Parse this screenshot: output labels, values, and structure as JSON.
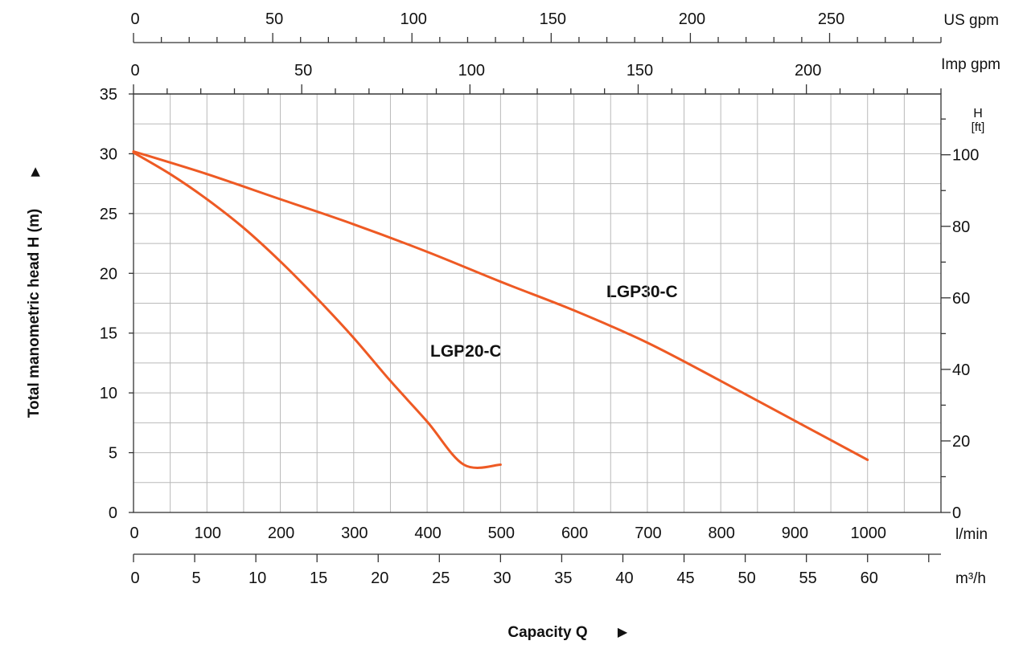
{
  "chart_data": {
    "type": "line",
    "colors": {
      "curve": "#EE5A24",
      "grid": "#b9b9b9",
      "axis": "#333333"
    },
    "grid": true,
    "ylabel": "Total manometric head H (m)",
    "xlabel": "Capacity Q",
    "arrow_glyph": "▶",
    "x_axis": {
      "unit": "l/min",
      "range": [
        0,
        1100
      ],
      "ticks": [
        "0",
        "100",
        "200",
        "300",
        "400",
        "500",
        "600",
        "700",
        "800",
        "900",
        "1000"
      ]
    },
    "y_axis": {
      "unit": "m",
      "range": [
        0,
        35
      ],
      "ticks": [
        "0",
        "5",
        "10",
        "15",
        "20",
        "25",
        "30",
        "35"
      ]
    },
    "secondary_axes": {
      "us_gpm": {
        "unit": "US gpm",
        "range": [
          0,
          290
        ],
        "ticks": [
          "0",
          "50",
          "100",
          "150",
          "200",
          "250"
        ]
      },
      "imp_gpm": {
        "unit": "Imp gpm",
        "range": [
          0,
          240
        ],
        "ticks": [
          "0",
          "50",
          "100",
          "150",
          "200"
        ]
      },
      "m3h": {
        "unit": "m³/h",
        "range": [
          0,
          66
        ],
        "ticks": [
          "0",
          "5",
          "10",
          "15",
          "20",
          "25",
          "30",
          "35",
          "40",
          "45",
          "50",
          "55",
          "60"
        ]
      },
      "ft": {
        "unit_top": "H",
        "unit_bottom": "[ft]",
        "range": [
          0,
          117
        ],
        "ticks": [
          "0",
          "20",
          "40",
          "60",
          "80",
          "100"
        ]
      }
    },
    "series": [
      {
        "name": "LGP20-C",
        "x": [
          0,
          50,
          100,
          150,
          200,
          250,
          300,
          350,
          400,
          450,
          500
        ],
        "y": [
          30.1,
          28.3,
          26.2,
          23.8,
          21.0,
          17.9,
          14.6,
          11.0,
          7.6,
          4.0,
          4.0
        ]
      },
      {
        "name": "LGP30-C",
        "x": [
          0,
          100,
          200,
          300,
          400,
          500,
          600,
          700,
          800,
          900,
          1000
        ],
        "y": [
          30.2,
          28.3,
          26.2,
          24.1,
          21.8,
          19.3,
          16.9,
          14.2,
          11.0,
          7.7,
          4.4
        ]
      }
    ]
  }
}
